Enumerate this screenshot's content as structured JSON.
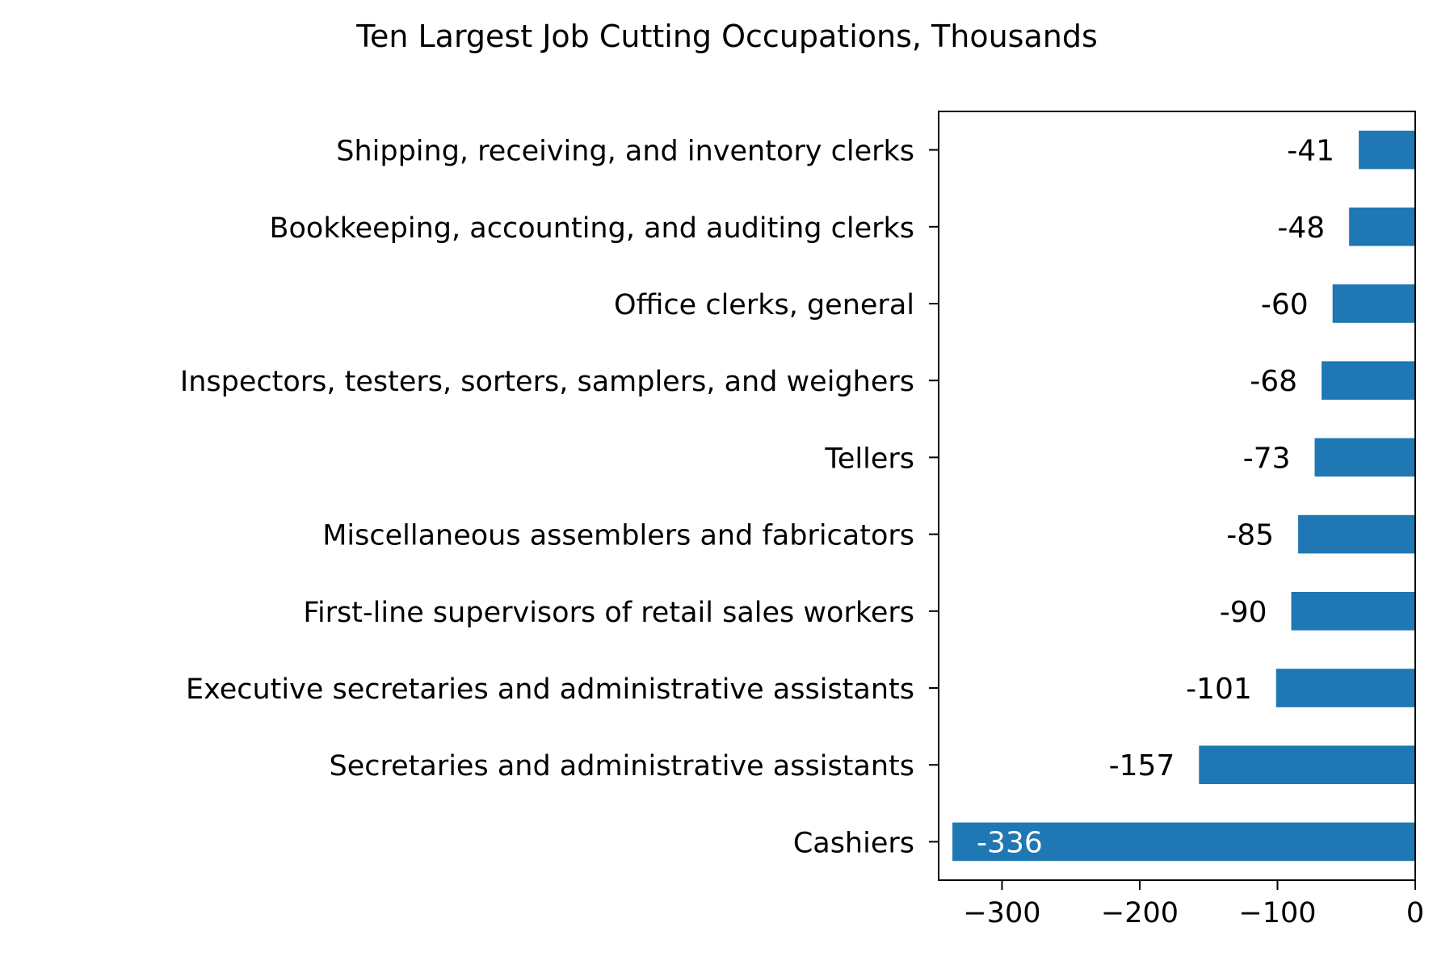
{
  "chart_data": {
    "type": "bar",
    "orientation": "horizontal",
    "title": "Ten Largest Job Cutting Occupations, Thousands",
    "xlabel": "",
    "ylabel": "",
    "categories": [
      "Shipping, receiving, and inventory clerks",
      "Bookkeeping, accounting, and auditing clerks",
      "Office clerks, general",
      "Inspectors, testers, sorters, samplers, and weighers",
      "Tellers",
      "Miscellaneous assemblers and fabricators",
      "First-line supervisors of retail sales workers",
      "Executive secretaries and administrative assistants",
      "Secretaries and administrative assistants",
      "Cashiers"
    ],
    "values": [
      -41,
      -48,
      -60,
      -68,
      -73,
      -85,
      -90,
      -101,
      -157,
      -336
    ],
    "data_labels": [
      "-41",
      "-48",
      "-60",
      "-68",
      "-73",
      "-85",
      "-90",
      "-101",
      "-157",
      "-336"
    ],
    "xlim": [
      -346,
      0
    ],
    "xticks": [
      -300,
      -200,
      -100,
      0
    ],
    "xtick_labels": [
      "−300",
      "−200",
      "−100",
      "0"
    ],
    "grid": false,
    "colors": {
      "bar": "#1f77b4",
      "label_inside": "#ffffff",
      "label_outside": "#000000",
      "axis": "#000000"
    }
  }
}
